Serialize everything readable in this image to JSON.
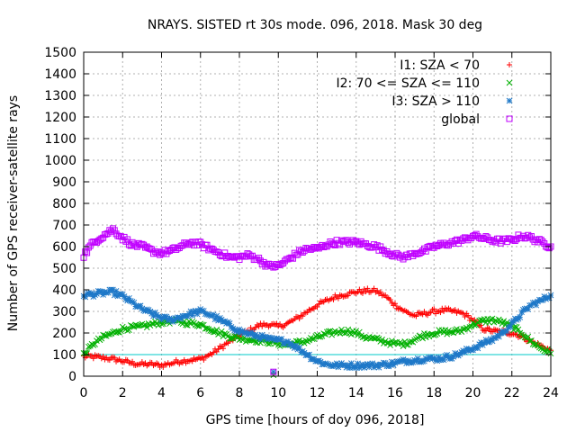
{
  "chart_data": {
    "type": "scatter",
    "title": "NRAYS. SISTED rt 30s mode. 096, 2018. Mask 30 deg",
    "xlabel": "GPS time [hours of doy 096, 2018]",
    "ylabel": "Number of GPS receiver-satellite rays",
    "xlim": [
      0,
      24
    ],
    "ylim": [
      0,
      1500
    ],
    "xticks": [
      0,
      2,
      4,
      6,
      8,
      10,
      12,
      14,
      16,
      18,
      20,
      22,
      24
    ],
    "yticks": [
      0,
      100,
      200,
      300,
      400,
      500,
      600,
      700,
      800,
      900,
      1000,
      1100,
      1200,
      1300,
      1400,
      1500
    ],
    "grid": true,
    "legend_position": "top-right",
    "reference_line": {
      "y": 100,
      "color": "#00c8c8"
    },
    "series": [
      {
        "name": "I1: SZA < 70",
        "marker": "plus",
        "color": "#ff0000",
        "x": [
          0,
          0.5,
          1,
          1.5,
          2,
          2.5,
          3,
          3.5,
          4,
          4.5,
          5,
          5.5,
          6,
          6.5,
          7,
          7.5,
          8,
          8.5,
          9,
          9.5,
          10,
          10.5,
          11,
          11.5,
          12,
          12.5,
          13,
          13.5,
          14,
          14.5,
          15,
          15.5,
          16,
          16.5,
          17,
          17.5,
          18,
          18.5,
          19,
          19.5,
          20,
          20.5,
          21,
          21.5,
          22,
          22.5,
          23,
          23.5,
          24
        ],
        "y": [
          90,
          90,
          85,
          80,
          70,
          60,
          55,
          55,
          50,
          60,
          70,
          75,
          80,
          100,
          130,
          160,
          190,
          210,
          235,
          240,
          230,
          245,
          270,
          300,
          330,
          350,
          370,
          380,
          390,
          395,
          395,
          370,
          330,
          300,
          280,
          290,
          300,
          305,
          300,
          290,
          260,
          220,
          210,
          205,
          200,
          185,
          160,
          140,
          120
        ]
      },
      {
        "name": "I2: 70 <= SZA <= 110",
        "marker": "x",
        "color": "#00b000",
        "x": [
          0,
          0.5,
          1,
          1.5,
          2,
          2.5,
          3,
          3.5,
          4,
          4.5,
          5,
          5.5,
          6,
          6.5,
          7,
          7.5,
          8,
          8.5,
          9,
          9.5,
          10,
          10.5,
          11,
          11.5,
          12,
          12.5,
          13,
          13.5,
          14,
          14.5,
          15,
          15.5,
          16,
          16.5,
          17,
          17.5,
          18,
          18.5,
          19,
          19.5,
          20,
          20.5,
          21,
          21.5,
          22,
          22.5,
          23,
          23.5,
          24
        ],
        "y": [
          100,
          150,
          180,
          200,
          220,
          225,
          230,
          240,
          250,
          255,
          250,
          245,
          240,
          220,
          200,
          185,
          175,
          170,
          165,
          160,
          150,
          145,
          155,
          165,
          180,
          195,
          205,
          210,
          200,
          180,
          170,
          160,
          150,
          150,
          170,
          190,
          200,
          205,
          205,
          215,
          240,
          255,
          260,
          250,
          230,
          200,
          160,
          130,
          105
        ]
      },
      {
        "name": "I3: SZA > 110",
        "marker": "star",
        "color": "#1e78c8",
        "x": [
          0,
          0.5,
          1,
          1.5,
          2,
          2.5,
          3,
          3.5,
          4,
          4.5,
          5,
          5.5,
          6,
          6.5,
          7,
          7.5,
          8,
          8.5,
          9,
          9.5,
          10,
          10.5,
          11,
          11.5,
          12,
          12.5,
          13,
          13.5,
          14,
          14.5,
          15,
          15.5,
          16,
          16.5,
          17,
          17.5,
          18,
          18.5,
          19,
          19.5,
          20,
          20.5,
          21,
          21.5,
          22,
          22.5,
          23,
          23.5,
          24
        ],
        "y": [
          375,
          380,
          385,
          390,
          370,
          340,
          310,
          290,
          270,
          260,
          275,
          290,
          300,
          285,
          260,
          235,
          210,
          195,
          185,
          170,
          165,
          160,
          130,
          100,
          70,
          55,
          50,
          50,
          50,
          50,
          50,
          55,
          60,
          70,
          75,
          80,
          80,
          85,
          95,
          110,
          130,
          150,
          170,
          200,
          240,
          290,
          330,
          350,
          375
        ]
      },
      {
        "name": "global",
        "marker": "square",
        "color": "#c000ff",
        "x": [
          0,
          0.5,
          1,
          1.5,
          2,
          2.5,
          3,
          3.5,
          4,
          4.5,
          5,
          5.5,
          6,
          6.5,
          7,
          7.5,
          8,
          8.5,
          9,
          9.5,
          10,
          10.5,
          11,
          11.5,
          12,
          12.5,
          13,
          13.5,
          14,
          14.5,
          15,
          15.5,
          16,
          16.5,
          17,
          17.5,
          18,
          18.5,
          19,
          19.5,
          20,
          20.5,
          21,
          21.5,
          22,
          22.5,
          23,
          23.5,
          24
        ],
        "y": [
          560,
          620,
          650,
          680,
          640,
          610,
          600,
          580,
          570,
          580,
          600,
          620,
          610,
          590,
          570,
          550,
          550,
          560,
          540,
          510,
          510,
          540,
          570,
          590,
          590,
          610,
          620,
          620,
          620,
          610,
          600,
          580,
          560,
          550,
          570,
          580,
          600,
          610,
          620,
          630,
          650,
          640,
          630,
          625,
          630,
          650,
          640,
          620,
          600
        ]
      }
    ],
    "outliers": [
      {
        "series": "I1: SZA < 70",
        "x": 9.75,
        "y": 10
      },
      {
        "series": "I2: 70 <= SZA <= 110",
        "x": 9.75,
        "y": 5
      },
      {
        "series": "I3: SZA > 110",
        "x": 9.75,
        "y": 20
      },
      {
        "series": "global",
        "x": 9.75,
        "y": 20
      }
    ]
  }
}
